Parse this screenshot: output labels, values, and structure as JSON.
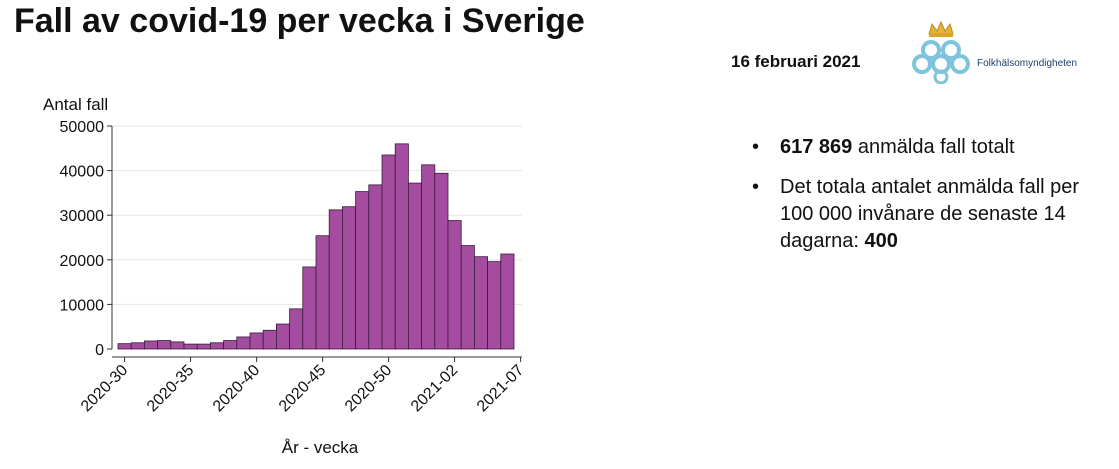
{
  "slide": {
    "title": "Fall av covid-19 per vecka i Sverige",
    "date": "16 februari 2021",
    "logo_text": "Folkhälsomyndigheten"
  },
  "facts": {
    "bullet_char": "•",
    "total_value": "617 869",
    "total_text": " anmälda fall totalt",
    "rate_text": "Det totala antalet anmälda fall per 100 000 invånare de senaste 14 dagarna: ",
    "rate_value": "400"
  },
  "colors": {
    "bar_fill": "#a44da0",
    "bar_stroke": "#3a1c38",
    "grid": "#e6e6e6",
    "logo_blue": "#7ec4dc",
    "logo_gold": "#e2b53a"
  },
  "chart_data": {
    "type": "bar",
    "title": "",
    "ylabel": "Antal fall",
    "xlabel": "År - vecka",
    "ylim": [
      0,
      50000
    ],
    "yticks": [
      0,
      10000,
      20000,
      30000,
      40000,
      50000
    ],
    "xtick_labels": [
      "2020-30",
      "2020-35",
      "2020-40",
      "2020-45",
      "2020-50",
      "2021-02",
      "2021-07"
    ],
    "categories": [
      "2020-30",
      "2020-31",
      "2020-32",
      "2020-33",
      "2020-34",
      "2020-35",
      "2020-36",
      "2020-37",
      "2020-38",
      "2020-39",
      "2020-40",
      "2020-41",
      "2020-42",
      "2020-43",
      "2020-44",
      "2020-45",
      "2020-46",
      "2020-47",
      "2020-48",
      "2020-49",
      "2020-50",
      "2020-51",
      "2020-52",
      "2020-53",
      "2021-01",
      "2021-02",
      "2021-03",
      "2021-04",
      "2021-05",
      "2021-06",
      "2021-07"
    ],
    "values": [
      1200,
      1400,
      1800,
      1900,
      1600,
      1100,
      1100,
      1400,
      1900,
      2700,
      3600,
      4200,
      5600,
      9000,
      18400,
      25400,
      31200,
      31900,
      35300,
      36800,
      43500,
      46000,
      37200,
      41300,
      39400,
      28800,
      23200,
      20700,
      19600,
      21300,
      0
    ],
    "grid": true
  }
}
